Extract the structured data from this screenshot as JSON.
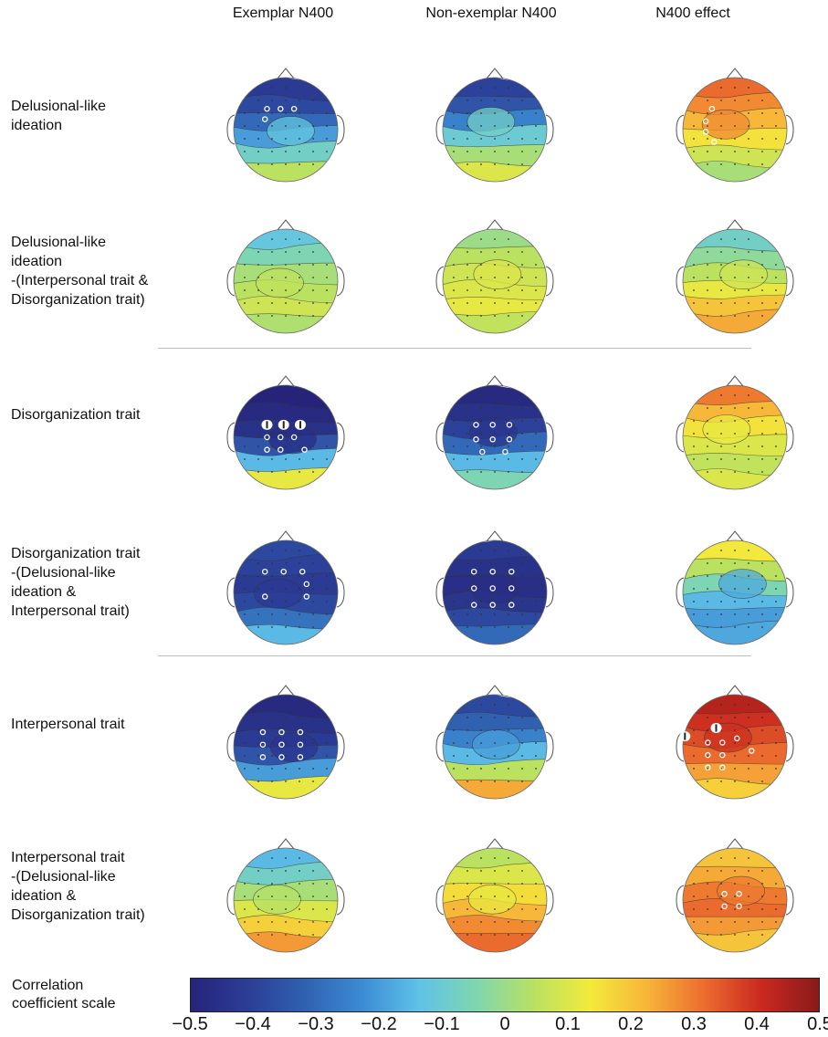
{
  "columns": [
    "Exemplar N400",
    "Non-exemplar N400",
    "N400 effect"
  ],
  "rows": [
    {
      "label": "Delusional-like\nideation",
      "maps": [
        {
          "levels": [
            -0.42,
            -0.38,
            -0.3,
            -0.2,
            -0.08,
            0.05
          ],
          "center": -0.12,
          "sig": [
            [
              0.32,
              0.3
            ],
            [
              0.45,
              0.3
            ],
            [
              0.58,
              0.3
            ],
            [
              0.3,
              0.4
            ]
          ],
          "big": []
        },
        {
          "levels": [
            -0.4,
            -0.35,
            -0.25,
            -0.1,
            0.02,
            0.1
          ],
          "center": -0.08,
          "sig": [],
          "big": []
        },
        {
          "levels": [
            0.32,
            0.28,
            0.22,
            0.15,
            0.08,
            0.02
          ],
          "center": 0.28,
          "sig": [
            [
              0.28,
              0.3
            ],
            [
              0.22,
              0.42
            ],
            [
              0.22,
              0.52
            ],
            [
              0.3,
              0.62
            ]
          ],
          "big": []
        }
      ]
    },
    {
      "label": "Delusional-like\nideation\n-(Interpersonal trait &\nDisorganization trait)",
      "maps": [
        {
          "levels": [
            -0.12,
            -0.05,
            0.02,
            0.05,
            0.08,
            0.03
          ],
          "center": 0.06,
          "sig": [],
          "big": []
        },
        {
          "levels": [
            0.0,
            0.05,
            0.08,
            0.1,
            0.12,
            0.06
          ],
          "center": 0.1,
          "sig": [],
          "big": []
        },
        {
          "levels": [
            -0.08,
            -0.02,
            0.05,
            0.12,
            0.2,
            0.24
          ],
          "center": 0.08,
          "sig": [],
          "big": []
        }
      ]
    },
    {
      "label": "Disorganization trait",
      "maps": [
        {
          "levels": [
            -0.5,
            -0.48,
            -0.45,
            -0.35,
            -0.15,
            0.12
          ],
          "center": -0.46,
          "sig": [
            [
              0.32,
              0.5
            ],
            [
              0.45,
              0.5
            ],
            [
              0.58,
              0.5
            ],
            [
              0.32,
              0.62
            ],
            [
              0.45,
              0.62
            ],
            [
              0.68,
              0.62
            ]
          ],
          "big": [
            [
              0.32,
              0.38
            ],
            [
              0.48,
              0.38
            ],
            [
              0.64,
              0.38
            ]
          ]
        },
        {
          "levels": [
            -0.48,
            -0.45,
            -0.4,
            -0.3,
            -0.15,
            -0.05
          ],
          "center": -0.44,
          "sig": [
            [
              0.32,
              0.38
            ],
            [
              0.48,
              0.38
            ],
            [
              0.64,
              0.38
            ],
            [
              0.32,
              0.52
            ],
            [
              0.48,
              0.52
            ],
            [
              0.64,
              0.52
            ],
            [
              0.38,
              0.64
            ],
            [
              0.6,
              0.64
            ]
          ],
          "big": []
        },
        {
          "levels": [
            0.3,
            0.22,
            0.15,
            0.1,
            0.06,
            0.1
          ],
          "center": 0.12,
          "sig": [],
          "big": []
        }
      ]
    },
    {
      "label": "Disorganization trait\n-(Delusional-like\nideation &\nInterpersonal trait)",
      "maps": [
        {
          "levels": [
            -0.38,
            -0.4,
            -0.42,
            -0.38,
            -0.28,
            -0.15
          ],
          "center": -0.42,
          "sig": [
            [
              0.3,
              0.3
            ],
            [
              0.48,
              0.3
            ],
            [
              0.66,
              0.3
            ],
            [
              0.7,
              0.42
            ],
            [
              0.7,
              0.54
            ],
            [
              0.3,
              0.54
            ]
          ],
          "big": []
        },
        {
          "levels": [
            -0.42,
            -0.45,
            -0.46,
            -0.44,
            -0.38,
            -0.3
          ],
          "center": -0.46,
          "sig": [
            [
              0.3,
              0.3
            ],
            [
              0.48,
              0.3
            ],
            [
              0.66,
              0.3
            ],
            [
              0.3,
              0.46
            ],
            [
              0.48,
              0.46
            ],
            [
              0.66,
              0.46
            ],
            [
              0.3,
              0.62
            ],
            [
              0.48,
              0.62
            ],
            [
              0.66,
              0.62
            ]
          ],
          "big": []
        },
        {
          "levels": [
            0.14,
            0.05,
            -0.05,
            -0.15,
            -0.2,
            -0.18
          ],
          "center": -0.18,
          "sig": [],
          "big": []
        }
      ]
    },
    {
      "label": "Interpersonal trait",
      "maps": [
        {
          "levels": [
            -0.48,
            -0.45,
            -0.42,
            -0.35,
            -0.2,
            0.12
          ],
          "center": -0.44,
          "sig": [
            [
              0.28,
              0.48
            ],
            [
              0.46,
              0.48
            ],
            [
              0.64,
              0.48
            ],
            [
              0.28,
              0.6
            ],
            [
              0.46,
              0.6
            ],
            [
              0.64,
              0.6
            ],
            [
              0.28,
              0.36
            ],
            [
              0.46,
              0.36
            ],
            [
              0.64,
              0.36
            ]
          ],
          "big": []
        },
        {
          "levels": [
            -0.38,
            -0.32,
            -0.25,
            -0.15,
            0.05,
            0.24
          ],
          "center": -0.2,
          "sig": [],
          "big": []
        },
        {
          "levels": [
            0.44,
            0.4,
            0.36,
            0.32,
            0.25,
            0.18
          ],
          "center": 0.4,
          "sig": [
            [
              0.24,
              0.46
            ],
            [
              0.24,
              0.58
            ],
            [
              0.38,
              0.46
            ],
            [
              0.38,
              0.58
            ],
            [
              0.52,
              0.42
            ],
            [
              0.66,
              0.54
            ],
            [
              0.24,
              0.7
            ],
            [
              0.38,
              0.7
            ]
          ],
          "big": [
            [
              0.32,
              0.32
            ],
            [
              0.02,
              0.4
            ]
          ]
        }
      ]
    },
    {
      "label": "Interpersonal trait\n-(Delusional-like\nideation &\nDisorganization trait)",
      "maps": [
        {
          "levels": [
            -0.15,
            -0.08,
            0.02,
            0.1,
            0.18,
            0.26
          ],
          "center": 0.04,
          "sig": [],
          "big": []
        },
        {
          "levels": [
            0.05,
            0.1,
            0.16,
            0.22,
            0.28,
            0.32
          ],
          "center": 0.12,
          "sig": [],
          "big": []
        },
        {
          "levels": [
            0.2,
            0.24,
            0.3,
            0.32,
            0.26,
            0.2
          ],
          "center": 0.3,
          "sig": [
            [
              0.4,
              0.44
            ],
            [
              0.54,
              0.44
            ],
            [
              0.4,
              0.56
            ],
            [
              0.54,
              0.56
            ]
          ],
          "big": []
        }
      ]
    }
  ],
  "colorbar": {
    "title": "Correlation\ncoefficient scale",
    "min": -0.5,
    "max": 0.5,
    "ticks": [
      "−0.5",
      "−0.4",
      "−0.3",
      "−0.2",
      "−0.1",
      "0",
      "0.1",
      "0.2",
      "0.3",
      "0.4",
      "0.5"
    ],
    "colors": [
      "#26247a",
      "#2c3d96",
      "#3061b1",
      "#3c8bd3",
      "#5fc2e8",
      "#7fd6b0",
      "#b8e162",
      "#f3ea3c",
      "#f7b43a",
      "#ec6b2e",
      "#c9291f",
      "#8a1a1a"
    ]
  }
}
